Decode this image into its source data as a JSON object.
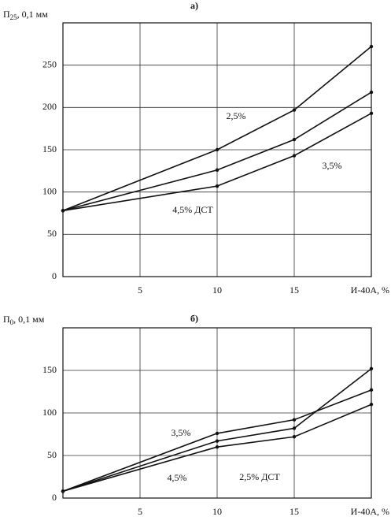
{
  "chart_data": [
    {
      "type": "line",
      "title": "а)",
      "ylabel": {
        "main": "П",
        "sub": "25",
        "rest": ", 0,1 мм"
      },
      "xlabel": "И-40А, %",
      "x": [
        0,
        10,
        15,
        20
      ],
      "series": [
        {
          "name": "2,5%",
          "color": "#111111",
          "values": [
            78,
            150,
            197,
            272
          ]
        },
        {
          "name": "3,5%",
          "color": "#111111",
          "values": [
            78,
            126,
            162,
            218
          ]
        },
        {
          "name": "4,5% ДСТ",
          "color": "#111111",
          "values": [
            78,
            107,
            143,
            193
          ]
        }
      ],
      "xlim": [
        0,
        20
      ],
      "xticks": [
        5,
        10,
        15
      ],
      "ylim": [
        0,
        300
      ],
      "yticks": [
        0,
        50,
        100,
        150,
        200,
        250
      ],
      "grid": true
    },
    {
      "type": "line",
      "title": "б)",
      "ylabel": {
        "main": "П",
        "sub": "0",
        "rest": ", 0,1 мм"
      },
      "xlabel": "И-40А, %",
      "x": [
        0,
        10,
        15,
        20
      ],
      "series": [
        {
          "name": "3,5%",
          "color": "#111111",
          "values": [
            8,
            76,
            92,
            127
          ]
        },
        {
          "name": "2,5% ДСТ",
          "color": "#111111",
          "values": [
            8,
            67,
            82,
            152
          ]
        },
        {
          "name": "4,5%",
          "color": "#111111",
          "values": [
            8,
            60,
            72,
            110
          ]
        }
      ],
      "xlim": [
        0,
        20
      ],
      "xticks": [
        5,
        10,
        15
      ],
      "ylim": [
        0,
        200
      ],
      "yticks": [
        0,
        50,
        100,
        150
      ],
      "grid": true
    }
  ]
}
